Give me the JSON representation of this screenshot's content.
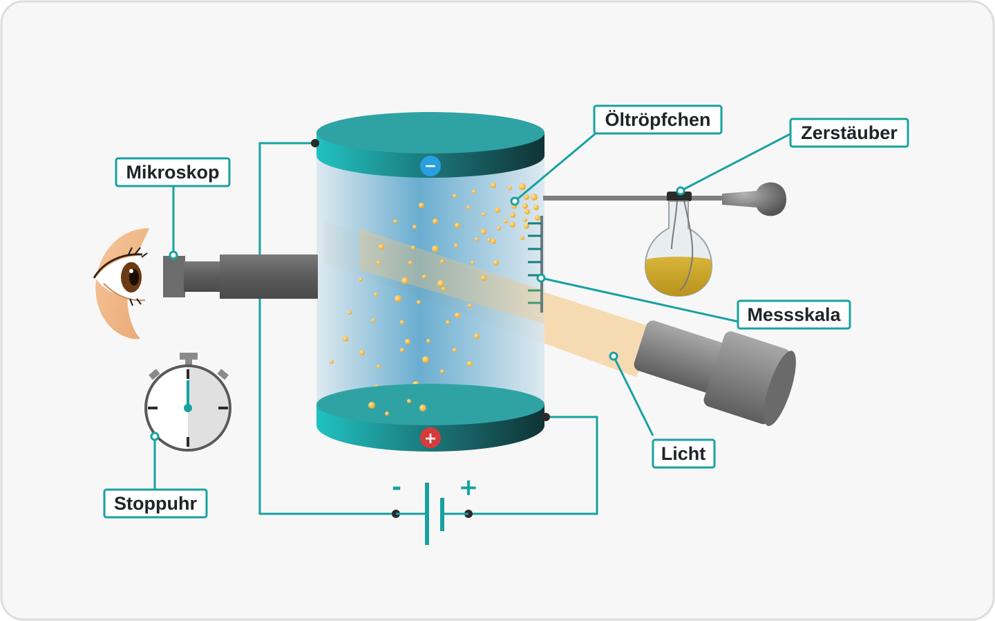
{
  "labels": {
    "mikroskop": "Mikroskop",
    "oeltroepfchen": "Öltröpfchen",
    "zerstaeuber": "Zerstäuber",
    "messskala": "Messskala",
    "licht": "Licht",
    "stoppuhr": "Stoppuhr"
  },
  "battery": {
    "minus": "-",
    "plus": "+"
  },
  "plates": {
    "top_sign": "−",
    "bottom_sign": "+"
  },
  "colors": {
    "accent": "#17a1a1",
    "plate": "#2fa3a3",
    "minus_badge": "#2a9fe0",
    "plus_badge": "#d63b3b",
    "oil": "#f0b43a",
    "light_beam": "#f6c27a",
    "background": "#f7f7f7"
  },
  "icons": [
    "eye-icon",
    "microscope-icon",
    "stopwatch-icon",
    "lamp-icon",
    "atomizer-icon",
    "battery-icon"
  ]
}
